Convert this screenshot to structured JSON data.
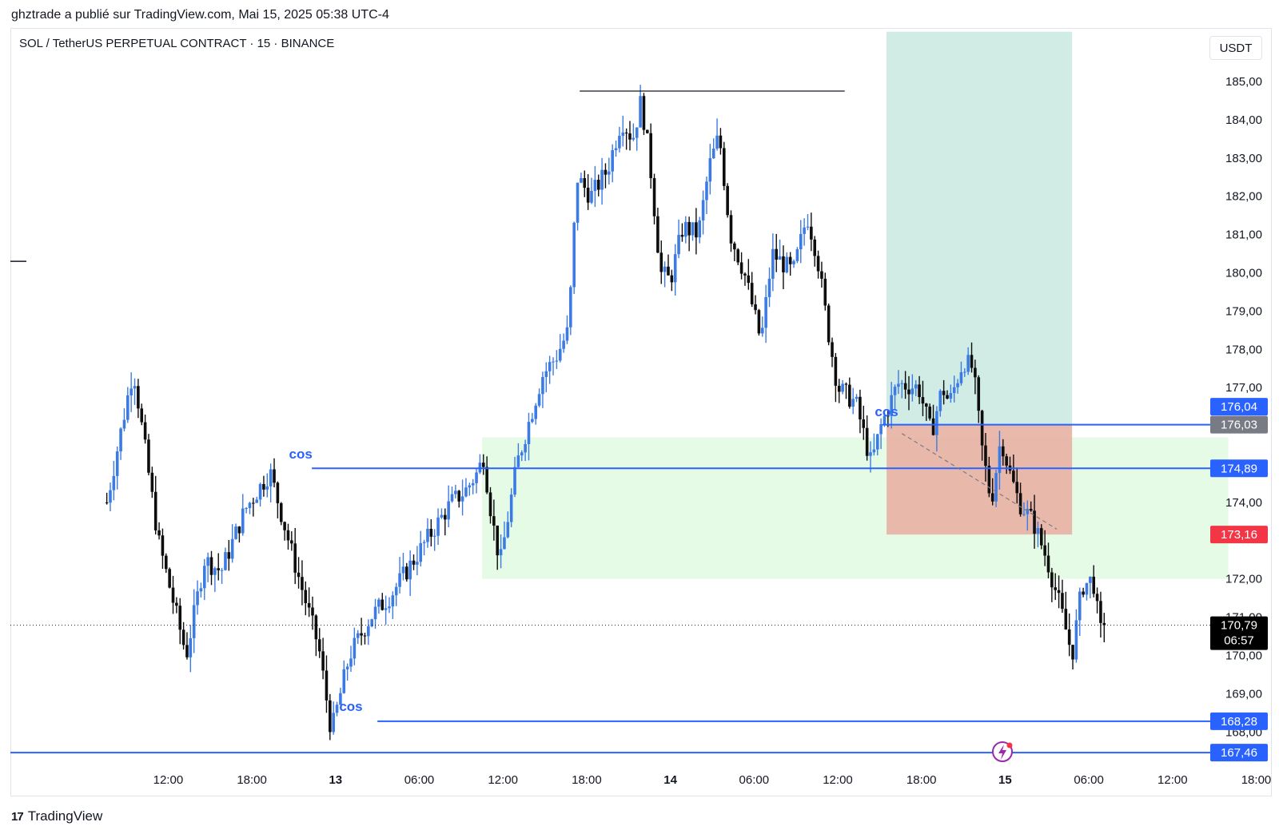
{
  "header": {
    "title": "ghztrade a publié sur TradingView.com, Mai 15, 2025 05:38 UTC-4",
    "symbol": "SOL / TetherUS PERPETUAL CONTRACT · 15 · BINANCE",
    "currency": "USDT"
  },
  "footer": {
    "brand": "TradingView",
    "logo_glyph": "17"
  },
  "colors": {
    "bull": "#3d7be4",
    "bear": "#0d0d0d",
    "line": "#2962ff",
    "target_zone": "#cdebe3",
    "stop_zone": "#e8b5a8",
    "demand_zone": "#e5fbe5",
    "tag_blue": "#2962ff",
    "tag_gray": "#787b86",
    "tag_red": "#f23645",
    "tag_black": "#000000"
  },
  "chart_data": {
    "type": "candlestick",
    "y_axis": {
      "ticks": [
        "185,00",
        "184,00",
        "183,00",
        "182,00",
        "181,00",
        "180,00",
        "179,00",
        "178,00",
        "177,00",
        "174,00",
        "172,00",
        "170,00",
        "169,00"
      ],
      "tick_values": [
        185,
        184,
        183,
        182,
        181,
        180,
        179,
        178,
        177,
        174,
        172,
        170,
        169
      ],
      "partial_ticks": [
        {
          "label": "171,00",
          "value": 171
        },
        {
          "label": "168,00",
          "value": 168
        }
      ]
    },
    "x_axis": {
      "ticks": [
        {
          "label": "12:00",
          "hours": 12,
          "bold": false
        },
        {
          "label": "18:00",
          "hours": 18,
          "bold": false
        },
        {
          "label": "13",
          "hours": 24,
          "bold": true
        },
        {
          "label": "06:00",
          "hours": 30,
          "bold": false
        },
        {
          "label": "12:00",
          "hours": 36,
          "bold": false
        },
        {
          "label": "18:00",
          "hours": 42,
          "bold": false
        },
        {
          "label": "14",
          "hours": 48,
          "bold": true
        },
        {
          "label": "06:00",
          "hours": 54,
          "bold": false
        },
        {
          "label": "12:00",
          "hours": 60,
          "bold": false
        },
        {
          "label": "18:00",
          "hours": 66,
          "bold": false
        },
        {
          "label": "15",
          "hours": 72,
          "bold": true
        },
        {
          "label": "06:00",
          "hours": 78,
          "bold": false
        },
        {
          "label": "12:00",
          "hours": 84,
          "bold": false
        },
        {
          "label": "18:00",
          "hours": 90,
          "bold": false
        }
      ]
    },
    "path_points": [
      [
        7.6,
        174.0
      ],
      [
        9.5,
        177.5
      ],
      [
        11.3,
        173.0
      ],
      [
        13.3,
        170.0
      ],
      [
        14.6,
        172.5
      ],
      [
        15.8,
        172.2
      ],
      [
        17.5,
        173.8
      ],
      [
        19.3,
        174.8
      ],
      [
        21.0,
        172.5
      ],
      [
        22.8,
        170.2
      ],
      [
        23.7,
        168.0
      ],
      [
        25.0,
        170.0
      ],
      [
        26.5,
        171.0
      ],
      [
        28.0,
        171.6
      ],
      [
        30.5,
        173.0
      ],
      [
        32.3,
        174.0
      ],
      [
        33.3,
        174.3
      ],
      [
        34.2,
        174.8
      ],
      [
        34.6,
        175.2
      ],
      [
        35.2,
        173.6
      ],
      [
        35.8,
        172.4
      ],
      [
        37.0,
        175.0
      ],
      [
        38.8,
        177.3
      ],
      [
        39.8,
        177.8
      ],
      [
        40.7,
        178.5
      ],
      [
        41.3,
        182.5
      ],
      [
        42.3,
        182.0
      ],
      [
        43.5,
        182.7
      ],
      [
        44.5,
        184.0
      ],
      [
        45.3,
        183.5
      ],
      [
        45.9,
        184.5
      ],
      [
        46.5,
        183.0
      ],
      [
        47.3,
        180.0
      ],
      [
        48.0,
        179.8
      ],
      [
        48.9,
        181.2
      ],
      [
        50.0,
        181.0
      ],
      [
        50.8,
        182.8
      ],
      [
        51.5,
        183.6
      ],
      [
        52.3,
        181.0
      ],
      [
        53.3,
        180.0
      ],
      [
        54.5,
        178.2
      ],
      [
        55.3,
        180.5
      ],
      [
        56.8,
        180.0
      ],
      [
        57.8,
        181.5
      ],
      [
        58.5,
        180.5
      ],
      [
        59.3,
        178.5
      ],
      [
        60.0,
        177.0
      ],
      [
        61.3,
        176.6
      ],
      [
        62.4,
        175.0
      ],
      [
        63.1,
        176.0
      ],
      [
        64.3,
        177.1
      ],
      [
        65.8,
        177.0
      ],
      [
        66.7,
        175.8
      ],
      [
        67.5,
        177.0
      ],
      [
        68.0,
        176.6
      ],
      [
        69.0,
        177.7
      ],
      [
        69.7,
        177.5
      ],
      [
        70.3,
        175.5
      ],
      [
        71.0,
        174.0
      ],
      [
        71.7,
        175.7
      ],
      [
        72.3,
        174.8
      ],
      [
        73.0,
        174.0
      ],
      [
        74.0,
        173.5
      ],
      [
        75.0,
        172.5
      ],
      [
        76.0,
        171.2
      ],
      [
        76.8,
        170.0
      ],
      [
        77.5,
        171.8
      ],
      [
        78.3,
        172.0
      ],
      [
        78.8,
        170.6
      ],
      [
        79.2,
        170.79
      ]
    ],
    "levels": [
      {
        "value": 176.04,
        "label": "176,04",
        "tag": "blue",
        "line": false
      },
      {
        "value": 176.03,
        "label": "176,03",
        "tag": "gray",
        "line": true
      },
      {
        "value": 174.89,
        "label": "174,89",
        "tag": "blue",
        "line": true
      },
      {
        "value": 173.16,
        "label": "173,16",
        "tag": "red",
        "line": false
      },
      {
        "value": 168.28,
        "label": "168,28",
        "tag": "blue",
        "line": true
      },
      {
        "value": 167.46,
        "label": "167,46",
        "tag": "blue",
        "line": true
      }
    ],
    "current_price": {
      "value": 170.79,
      "label": "170,79",
      "countdown": "06:57"
    },
    "annotations": [
      {
        "text": "cos",
        "hours": 21.5,
        "value": 175.15
      },
      {
        "text": "cos",
        "hours": 25.1,
        "value": 168.55
      },
      {
        "text": "cos",
        "hours": 63.5,
        "value": 176.25
      }
    ],
    "zones": {
      "target": {
        "x0": 63.5,
        "x1": 76.8,
        "y0": 176.03,
        "y1": 186.3
      },
      "stop": {
        "x0": 63.5,
        "x1": 76.8,
        "y0": 173.16,
        "y1": 176.03
      },
      "demand": {
        "x0": 34.5,
        "x1": 88.0,
        "y0": 172.0,
        "y1": 175.7
      }
    },
    "resistance_line": {
      "x0": 41.5,
      "x1": 60.5,
      "value": 184.75
    }
  }
}
